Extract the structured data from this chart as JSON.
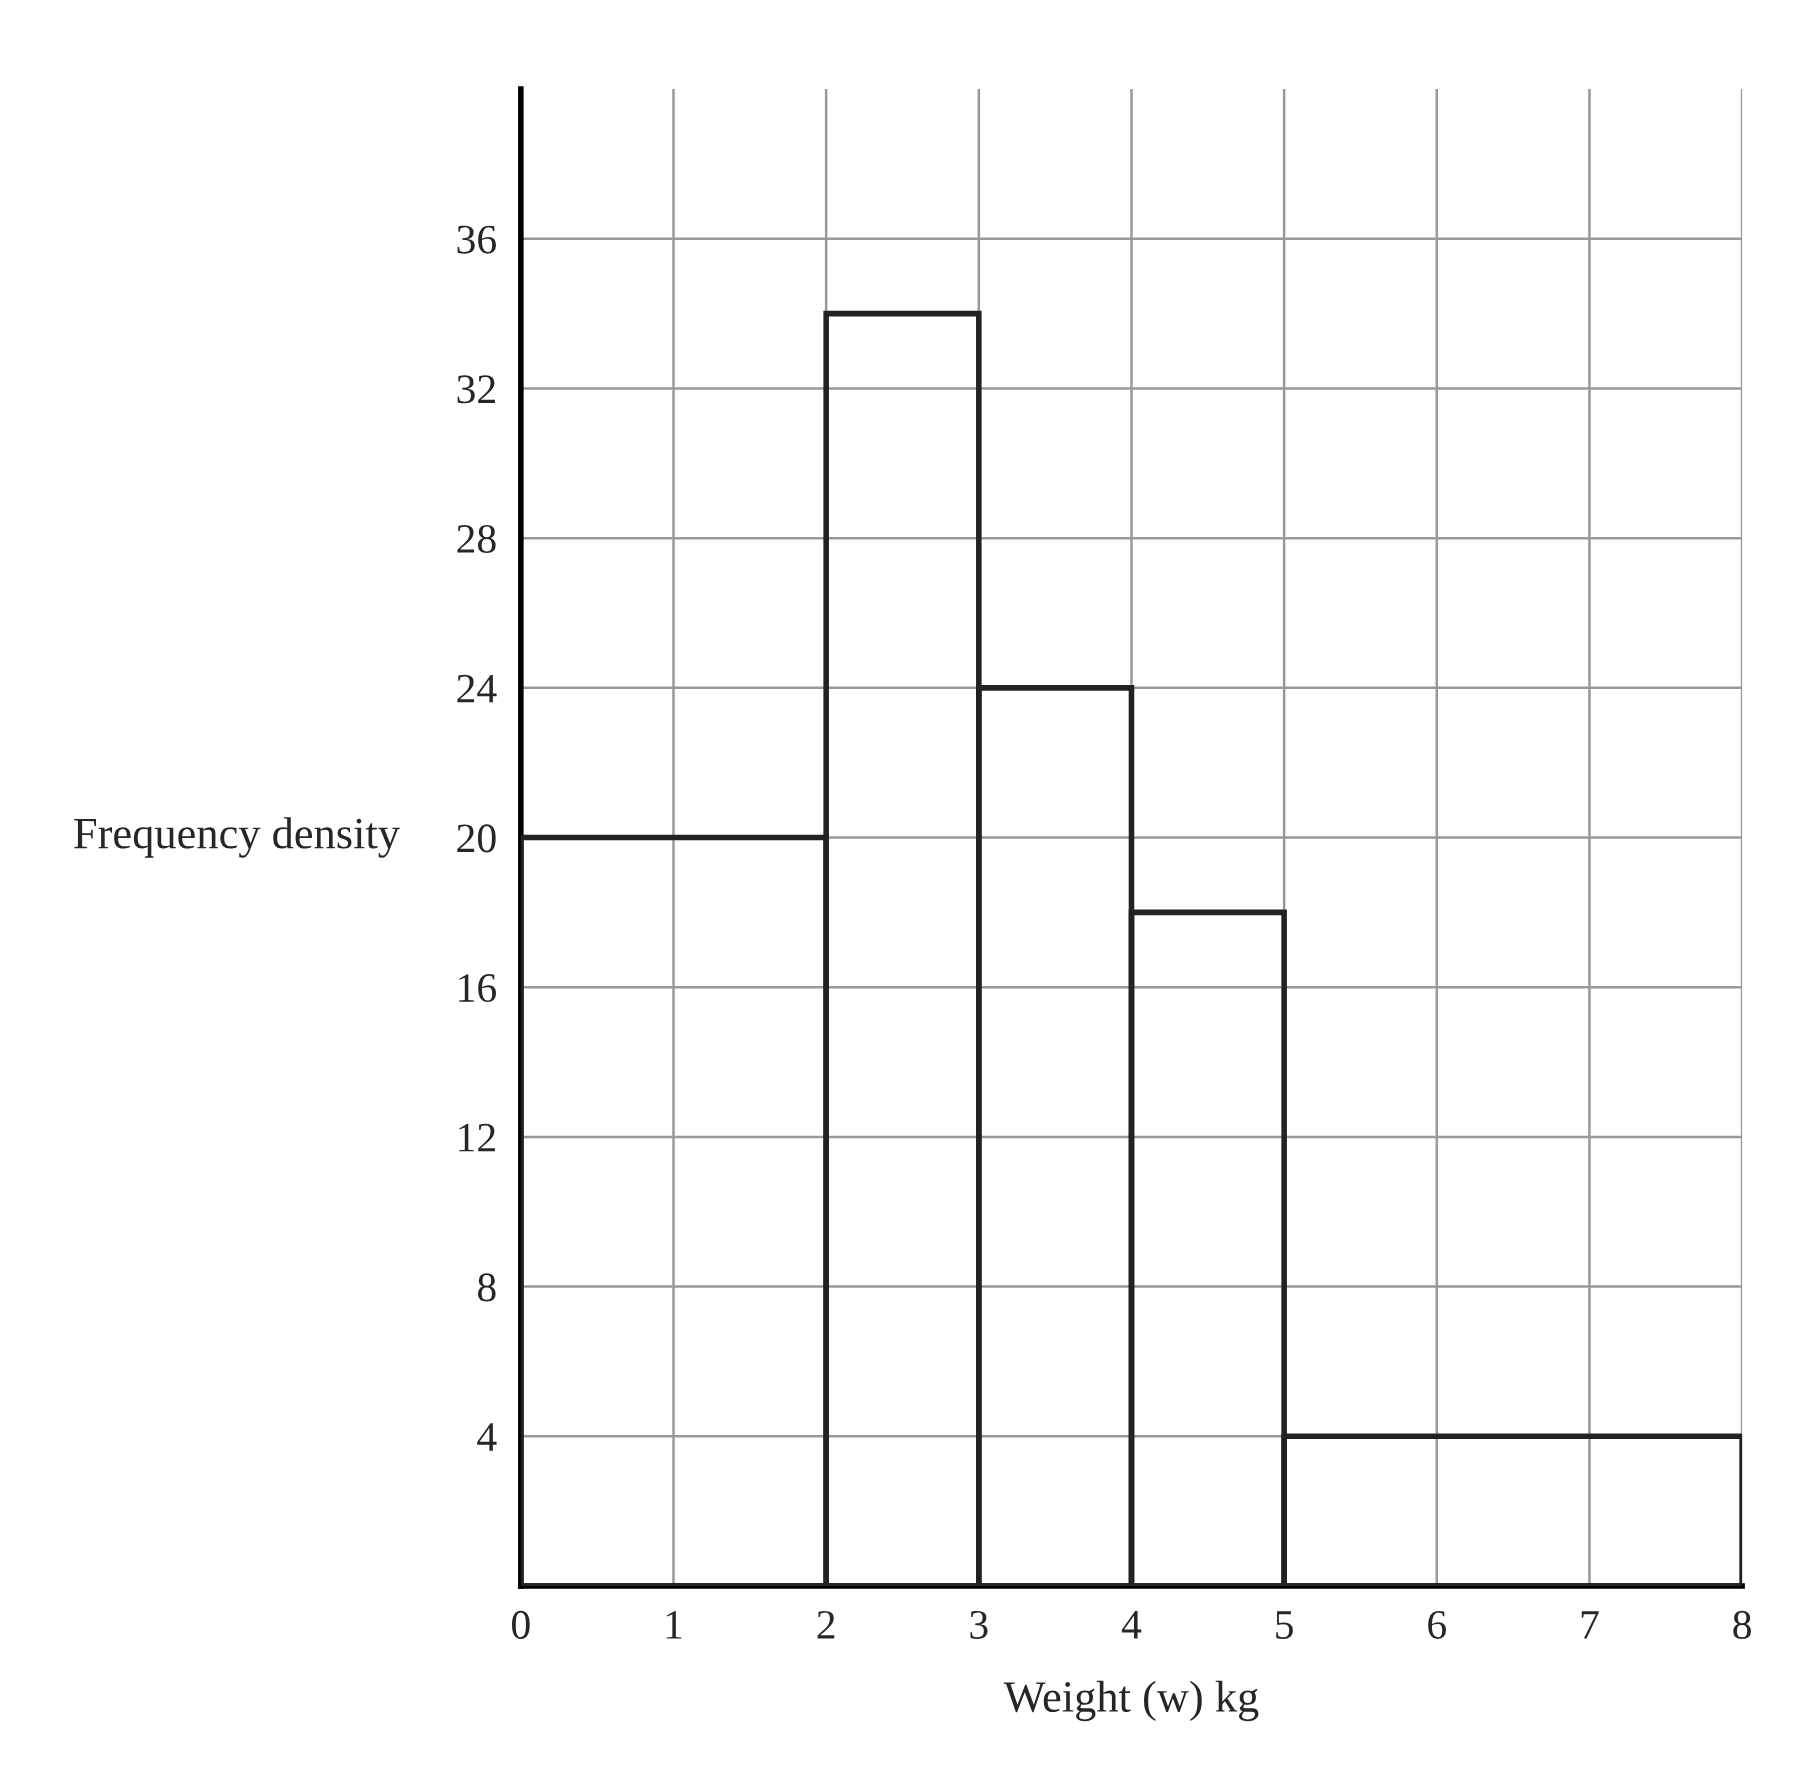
{
  "chart_data": {
    "type": "histogram",
    "xlabel": "Weight (w) kg",
    "ylabel": "Frequency density",
    "bins": [
      0,
      2,
      3,
      4,
      5,
      8
    ],
    "values": [
      20,
      34,
      24,
      18,
      4
    ],
    "color": "#222222",
    "xlim": [
      0,
      8
    ],
    "ylim": [
      0,
      40
    ],
    "xticks": [
      0,
      1,
      2,
      3,
      4,
      5,
      6,
      7,
      8
    ],
    "yticks": [
      4,
      8,
      12,
      16,
      20,
      24,
      28,
      32,
      36
    ],
    "grid": true
  }
}
